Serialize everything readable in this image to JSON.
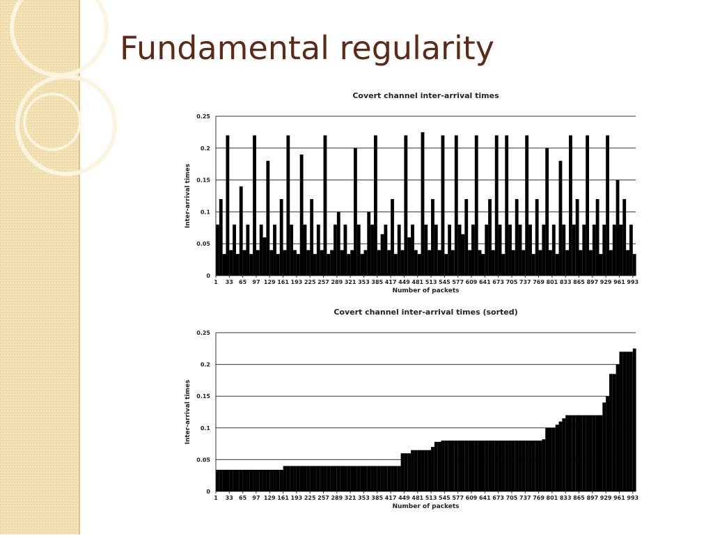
{
  "slide_title": "Fundamental regularity",
  "chart_data": [
    {
      "type": "bar",
      "title": "Covert channel inter-arrival times",
      "x_label": "Number of packets",
      "y_label": "Inter-arrival times",
      "color": "#000000",
      "grid": true,
      "xlim": [
        1,
        1000
      ],
      "xticks": [
        1,
        33,
        65,
        97,
        129,
        161,
        193,
        225,
        257,
        289,
        321,
        353,
        385,
        417,
        449,
        481,
        513,
        545,
        577,
        609,
        641,
        673,
        705,
        737,
        769,
        801,
        833,
        865,
        897,
        929,
        961,
        993
      ],
      "ylim": [
        0,
        0.25
      ],
      "yticks": [
        0,
        0.05,
        0.1,
        0.15,
        0.2,
        0.25
      ],
      "x": [
        1,
        9,
        17,
        25,
        33,
        41,
        49,
        57,
        65,
        73,
        81,
        89,
        97,
        105,
        113,
        121,
        129,
        137,
        145,
        153,
        161,
        169,
        177,
        185,
        193,
        201,
        209,
        217,
        225,
        233,
        241,
        249,
        257,
        265,
        273,
        281,
        289,
        297,
        305,
        313,
        321,
        329,
        337,
        345,
        353,
        361,
        369,
        377,
        385,
        393,
        401,
        409,
        417,
        425,
        433,
        441,
        449,
        457,
        465,
        473,
        481,
        489,
        497,
        505,
        513,
        521,
        529,
        537,
        545,
        553,
        561,
        569,
        577,
        585,
        593,
        601,
        609,
        617,
        625,
        633,
        641,
        649,
        657,
        665,
        673,
        681,
        689,
        697,
        705,
        713,
        721,
        729,
        737,
        745,
        753,
        761,
        769,
        777,
        785,
        793,
        801,
        809,
        817,
        825,
        833,
        841,
        849,
        857,
        865,
        873,
        881,
        889,
        897,
        905,
        913,
        921,
        929,
        937,
        945,
        953,
        961,
        969,
        977,
        985,
        993
      ],
      "values": [
        0.08,
        0.12,
        0.034,
        0.22,
        0.04,
        0.08,
        0.034,
        0.14,
        0.04,
        0.08,
        0.034,
        0.22,
        0.04,
        0.08,
        0.06,
        0.18,
        0.04,
        0.08,
        0.034,
        0.12,
        0.04,
        0.22,
        0.08,
        0.04,
        0.034,
        0.19,
        0.08,
        0.04,
        0.12,
        0.034,
        0.08,
        0.04,
        0.22,
        0.034,
        0.04,
        0.08,
        0.1,
        0.04,
        0.08,
        0.034,
        0.04,
        0.2,
        0.08,
        0.034,
        0.04,
        0.1,
        0.08,
        0.22,
        0.04,
        0.065,
        0.08,
        0.04,
        0.12,
        0.034,
        0.08,
        0.04,
        0.22,
        0.06,
        0.08,
        0.04,
        0.034,
        0.225,
        0.08,
        0.04,
        0.12,
        0.08,
        0.04,
        0.22,
        0.034,
        0.08,
        0.04,
        0.22,
        0.08,
        0.065,
        0.12,
        0.04,
        0.08,
        0.22,
        0.04,
        0.034,
        0.08,
        0.12,
        0.04,
        0.22,
        0.08,
        0.034,
        0.22,
        0.08,
        0.04,
        0.12,
        0.08,
        0.04,
        0.22,
        0.08,
        0.034,
        0.12,
        0.04,
        0.08,
        0.2,
        0.04,
        0.08,
        0.034,
        0.18,
        0.08,
        0.04,
        0.22,
        0.08,
        0.12,
        0.04,
        0.08,
        0.22,
        0.04,
        0.08,
        0.12,
        0.034,
        0.08,
        0.22,
        0.04,
        0.08,
        0.15,
        0.08,
        0.12,
        0.04,
        0.08,
        0.034
      ]
    },
    {
      "type": "bar",
      "title": "Covert channel inter-arrival times (sorted)",
      "x_label": "Number of packets",
      "y_label": "Inter-arrival times",
      "color": "#000000",
      "grid": true,
      "xlim": [
        1,
        1000
      ],
      "xticks": [
        1,
        33,
        65,
        97,
        129,
        161,
        193,
        225,
        257,
        289,
        321,
        353,
        385,
        417,
        449,
        481,
        513,
        545,
        577,
        609,
        641,
        673,
        705,
        737,
        769,
        801,
        833,
        865,
        897,
        929,
        961,
        993
      ],
      "ylim": [
        0,
        0.25
      ],
      "yticks": [
        0,
        0.05,
        0.1,
        0.15,
        0.2,
        0.25
      ],
      "x": [
        1,
        9,
        17,
        25,
        33,
        41,
        49,
        57,
        65,
        73,
        81,
        89,
        97,
        105,
        113,
        121,
        129,
        137,
        145,
        153,
        161,
        169,
        177,
        185,
        193,
        201,
        209,
        217,
        225,
        233,
        241,
        249,
        257,
        265,
        273,
        281,
        289,
        297,
        305,
        313,
        321,
        329,
        337,
        345,
        353,
        361,
        369,
        377,
        385,
        393,
        401,
        409,
        417,
        425,
        433,
        441,
        449,
        457,
        465,
        473,
        481,
        489,
        497,
        505,
        513,
        521,
        529,
        537,
        545,
        553,
        561,
        569,
        577,
        585,
        593,
        601,
        609,
        617,
        625,
        633,
        641,
        649,
        657,
        665,
        673,
        681,
        689,
        697,
        705,
        713,
        721,
        729,
        737,
        745,
        753,
        761,
        769,
        777,
        785,
        793,
        801,
        809,
        817,
        825,
        833,
        841,
        849,
        857,
        865,
        873,
        881,
        889,
        897,
        905,
        913,
        921,
        929,
        937,
        945,
        953,
        961,
        969,
        977,
        985,
        993
      ],
      "values": [
        0.034,
        0.034,
        0.034,
        0.034,
        0.034,
        0.034,
        0.034,
        0.034,
        0.034,
        0.034,
        0.034,
        0.034,
        0.034,
        0.034,
        0.034,
        0.034,
        0.034,
        0.034,
        0.034,
        0.034,
        0.04,
        0.04,
        0.04,
        0.04,
        0.04,
        0.04,
        0.04,
        0.04,
        0.04,
        0.04,
        0.04,
        0.04,
        0.04,
        0.04,
        0.04,
        0.04,
        0.04,
        0.04,
        0.04,
        0.04,
        0.04,
        0.04,
        0.04,
        0.04,
        0.04,
        0.04,
        0.04,
        0.04,
        0.04,
        0.04,
        0.04,
        0.04,
        0.04,
        0.04,
        0.04,
        0.06,
        0.06,
        0.06,
        0.065,
        0.065,
        0.065,
        0.065,
        0.065,
        0.065,
        0.07,
        0.078,
        0.078,
        0.08,
        0.08,
        0.08,
        0.08,
        0.08,
        0.08,
        0.08,
        0.08,
        0.08,
        0.08,
        0.08,
        0.08,
        0.08,
        0.08,
        0.08,
        0.08,
        0.08,
        0.08,
        0.08,
        0.08,
        0.08,
        0.08,
        0.08,
        0.08,
        0.08,
        0.08,
        0.08,
        0.08,
        0.08,
        0.08,
        0.082,
        0.1,
        0.1,
        0.1,
        0.105,
        0.11,
        0.115,
        0.12,
        0.12,
        0.12,
        0.12,
        0.12,
        0.12,
        0.12,
        0.12,
        0.12,
        0.12,
        0.12,
        0.14,
        0.15,
        0.185,
        0.185,
        0.2,
        0.22,
        0.22,
        0.22,
        0.22,
        0.225
      ]
    }
  ]
}
